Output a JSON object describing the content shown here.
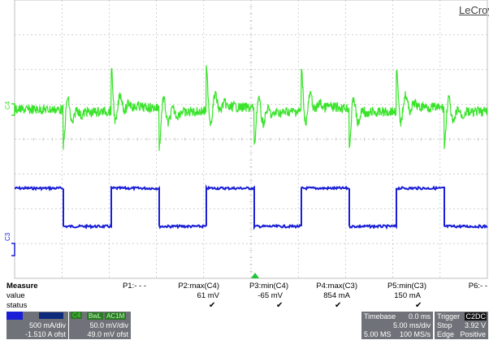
{
  "brand": "LeCroy",
  "scope": {
    "channel_markers": {
      "green": "C4",
      "blue": "C3"
    },
    "colors": {
      "green": "#39e32a",
      "blue": "#1a1fd6",
      "grid": "#bfbfbf",
      "trigger": "#22c43a"
    }
  },
  "measure": {
    "header": "Measure",
    "row_value": "value",
    "row_status": "status",
    "params": [
      {
        "name": "P1:- - -",
        "value": "",
        "status": ""
      },
      {
        "name": "P2:max(C4)",
        "value": "61 mV",
        "status": "✔"
      },
      {
        "name": "P3:min(C4)",
        "value": "-65 mV",
        "status": "✔"
      },
      {
        "name": "P4:max(C3)",
        "value": "854 mA",
        "status": "✔"
      },
      {
        "name": "P5:min(C3)",
        "value": "150 mA",
        "status": "✔"
      },
      {
        "name": "P6:- -",
        "value": "",
        "status": ""
      }
    ]
  },
  "channels": [
    {
      "id": "C3",
      "scale": "500 mA/div",
      "offset": "-1.510 A ofst",
      "color": "#1a1fd6"
    },
    {
      "id": "C4",
      "tag1": "BwL",
      "tag2": "AC1M",
      "scale": "50.0 mV/div",
      "offset": "49.0 mV ofst",
      "color": "#39e32a"
    }
  ],
  "timebase": {
    "label": "Timebase",
    "delay": "0.0 ms",
    "per_div": "5.00 ms/div",
    "samples": "5.00 MS",
    "rate": "100 MS/s"
  },
  "trigger": {
    "label": "Trigger",
    "channel": "C2",
    "coupling": "DC",
    "mode": "Stop",
    "level": "3.92 V",
    "type": "Edge",
    "slope": "Positive"
  }
}
